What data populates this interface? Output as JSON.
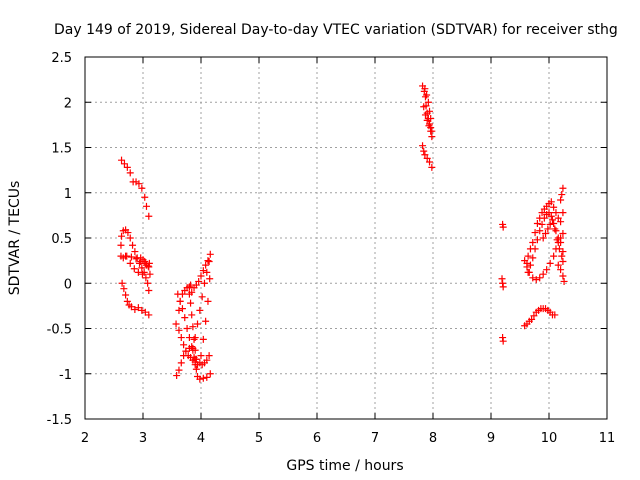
{
  "chart_data": {
    "type": "scatter",
    "title": "Day 149 of 2019, Sidereal Day-to-day VTEC variation (SDTVAR) for receiver sthg",
    "xlabel": "GPS time / hours",
    "ylabel": "SDTVAR / TECUs",
    "xlim": [
      2,
      11
    ],
    "ylim": [
      -1.5,
      2.5
    ],
    "xticks": [
      "2",
      "3",
      "4",
      "5",
      "6",
      "7",
      "8",
      "9",
      "10",
      "11"
    ],
    "yticks": [
      "-1.5",
      "-1",
      "-0.5",
      "0",
      "0.5",
      "1",
      "1.5",
      "2",
      "2.5"
    ],
    "grid": true,
    "marker": "+",
    "marker_color": "#ff0000",
    "series": [
      {
        "name": "SDTVAR",
        "points": [
          [
            2.63,
            1.36
          ],
          [
            2.68,
            1.32
          ],
          [
            2.73,
            1.28
          ],
          [
            2.78,
            1.22
          ],
          [
            2.83,
            1.12
          ],
          [
            2.88,
            1.12
          ],
          [
            2.93,
            1.1
          ],
          [
            2.98,
            1.05
          ],
          [
            3.03,
            0.95
          ],
          [
            3.06,
            0.85
          ],
          [
            3.1,
            0.74
          ],
          [
            2.62,
            0.42
          ],
          [
            2.63,
            0.52
          ],
          [
            2.66,
            0.58
          ],
          [
            2.7,
            0.59
          ],
          [
            2.74,
            0.56
          ],
          [
            2.78,
            0.5
          ],
          [
            2.82,
            0.42
          ],
          [
            2.86,
            0.35
          ],
          [
            2.9,
            0.28
          ],
          [
            2.94,
            0.22
          ],
          [
            2.98,
            0.17
          ],
          [
            3.02,
            0.12
          ],
          [
            3.05,
            0.06
          ],
          [
            3.08,
            0.0
          ],
          [
            3.1,
            -0.08
          ],
          [
            2.62,
            0.3
          ],
          [
            2.66,
            0.28
          ],
          [
            2.72,
            0.3
          ],
          [
            2.8,
            0.29
          ],
          [
            2.88,
            0.27
          ],
          [
            2.96,
            0.24
          ],
          [
            3.04,
            0.22
          ],
          [
            3.1,
            0.18
          ],
          [
            3.12,
            0.1
          ],
          [
            2.7,
            0.3
          ],
          [
            2.78,
            0.22
          ],
          [
            2.85,
            0.16
          ],
          [
            2.92,
            0.12
          ],
          [
            2.99,
            0.1
          ],
          [
            2.64,
            0.0
          ],
          [
            2.67,
            -0.06
          ],
          [
            2.7,
            -0.13
          ],
          [
            2.73,
            -0.2
          ],
          [
            2.76,
            -0.24
          ],
          [
            2.8,
            -0.26
          ],
          [
            2.86,
            -0.29
          ],
          [
            2.92,
            -0.27
          ],
          [
            2.98,
            -0.3
          ],
          [
            3.04,
            -0.32
          ],
          [
            3.1,
            -0.35
          ],
          [
            2.96,
            0.28
          ],
          [
            3.0,
            0.26
          ],
          [
            3.03,
            0.24
          ],
          [
            3.06,
            0.2
          ],
          [
            3.09,
            0.19
          ],
          [
            3.11,
            0.22
          ],
          [
            3.62,
            -0.3
          ],
          [
            3.64,
            -0.2
          ],
          [
            3.68,
            -0.12
          ],
          [
            3.72,
            -0.08
          ],
          [
            3.76,
            -0.05
          ],
          [
            3.8,
            -0.04
          ],
          [
            3.82,
            -0.02
          ],
          [
            3.57,
            -0.45
          ],
          [
            3.62,
            -0.52
          ],
          [
            3.66,
            -0.6
          ],
          [
            3.7,
            -0.68
          ],
          [
            3.74,
            -0.75
          ],
          [
            3.78,
            -0.8
          ],
          [
            3.82,
            -0.82
          ],
          [
            3.86,
            -0.85
          ],
          [
            3.9,
            -0.87
          ],
          [
            3.94,
            -0.9
          ],
          [
            3.98,
            -0.88
          ],
          [
            4.02,
            -0.9
          ],
          [
            4.06,
            -0.88
          ],
          [
            4.1,
            -0.85
          ],
          [
            4.14,
            -0.8
          ],
          [
            3.58,
            -1.02
          ],
          [
            3.62,
            -0.96
          ],
          [
            3.66,
            -0.88
          ],
          [
            3.7,
            -0.8
          ],
          [
            3.74,
            -0.75
          ],
          [
            3.8,
            -0.72
          ],
          [
            3.86,
            -0.74
          ],
          [
            3.9,
            -0.84
          ],
          [
            3.92,
            -0.95
          ],
          [
            3.94,
            -1.03
          ],
          [
            3.98,
            -1.06
          ],
          [
            4.04,
            -1.05
          ],
          [
            4.1,
            -1.04
          ],
          [
            4.16,
            -1.0
          ],
          [
            3.6,
            -0.12
          ],
          [
            3.64,
            -0.2
          ],
          [
            3.68,
            -0.28
          ],
          [
            3.72,
            -0.38
          ],
          [
            3.76,
            -0.5
          ],
          [
            3.8,
            -0.6
          ],
          [
            3.84,
            -0.7
          ],
          [
            3.88,
            -0.82
          ],
          [
            3.9,
            -0.9
          ],
          [
            3.8,
            -0.12
          ],
          [
            3.82,
            -0.22
          ],
          [
            3.84,
            -0.35
          ],
          [
            3.86,
            -0.48
          ],
          [
            3.88,
            -0.62
          ],
          [
            3.9,
            -0.74
          ],
          [
            3.92,
            -0.84
          ],
          [
            3.86,
            -0.72
          ],
          [
            3.9,
            -0.6
          ],
          [
            3.94,
            -0.45
          ],
          [
            3.98,
            -0.3
          ],
          [
            4.02,
            -0.15
          ],
          [
            4.06,
            0.0
          ],
          [
            4.1,
            0.12
          ],
          [
            4.14,
            0.24
          ],
          [
            4.16,
            0.32
          ],
          [
            3.84,
            -0.1
          ],
          [
            3.88,
            -0.05
          ],
          [
            3.92,
            -0.02
          ],
          [
            3.96,
            0.02
          ],
          [
            4.0,
            0.08
          ],
          [
            4.04,
            0.14
          ],
          [
            4.08,
            0.2
          ],
          [
            4.12,
            0.25
          ],
          [
            4.0,
            -0.8
          ],
          [
            4.04,
            -0.62
          ],
          [
            4.08,
            -0.42
          ],
          [
            4.12,
            -0.2
          ],
          [
            4.15,
            0.05
          ],
          [
            7.82,
            2.18
          ],
          [
            7.85,
            2.12
          ],
          [
            7.87,
            2.06
          ],
          [
            7.88,
            1.96
          ],
          [
            7.9,
            1.88
          ],
          [
            7.92,
            1.82
          ],
          [
            7.94,
            1.76
          ],
          [
            7.96,
            1.72
          ],
          [
            7.98,
            1.68
          ],
          [
            7.86,
            2.15
          ],
          [
            7.89,
            2.08
          ],
          [
            7.92,
            2.0
          ],
          [
            7.94,
            1.9
          ],
          [
            7.96,
            1.82
          ],
          [
            7.84,
            1.95
          ],
          [
            7.87,
            1.86
          ],
          [
            7.9,
            1.8
          ],
          [
            7.93,
            1.74
          ],
          [
            7.96,
            1.68
          ],
          [
            7.98,
            1.62
          ],
          [
            7.82,
            1.52
          ],
          [
            7.84,
            1.46
          ],
          [
            7.86,
            1.42
          ],
          [
            7.9,
            1.38
          ],
          [
            7.94,
            1.34
          ],
          [
            7.98,
            1.28
          ],
          [
            9.2,
            0.65
          ],
          [
            9.21,
            0.62
          ],
          [
            9.19,
            0.05
          ],
          [
            9.2,
            0.0
          ],
          [
            9.21,
            -0.04
          ],
          [
            9.2,
            -0.6
          ],
          [
            9.21,
            -0.64
          ],
          [
            9.58,
            -0.47
          ],
          [
            9.62,
            -0.45
          ],
          [
            9.66,
            -0.42
          ],
          [
            9.7,
            -0.4
          ],
          [
            9.74,
            -0.36
          ],
          [
            9.78,
            -0.32
          ],
          [
            9.82,
            -0.3
          ],
          [
            9.86,
            -0.28
          ],
          [
            9.9,
            -0.28
          ],
          [
            9.94,
            -0.28
          ],
          [
            9.98,
            -0.3
          ],
          [
            10.02,
            -0.32
          ],
          [
            10.06,
            -0.35
          ],
          [
            10.1,
            -0.35
          ],
          [
            9.62,
            0.22
          ],
          [
            9.64,
            0.3
          ],
          [
            9.68,
            0.38
          ],
          [
            9.72,
            0.45
          ],
          [
            9.76,
            0.56
          ],
          [
            9.8,
            0.66
          ],
          [
            9.84,
            0.72
          ],
          [
            9.88,
            0.78
          ],
          [
            9.92,
            0.82
          ],
          [
            9.96,
            0.85
          ],
          [
            10.0,
            0.88
          ],
          [
            10.04,
            0.9
          ],
          [
            10.08,
            0.84
          ],
          [
            10.12,
            0.78
          ],
          [
            10.16,
            0.72
          ],
          [
            10.2,
            0.68
          ],
          [
            10.24,
            0.78
          ],
          [
            9.58,
            0.25
          ],
          [
            9.62,
            0.18
          ],
          [
            9.66,
            0.12
          ],
          [
            9.72,
            0.06
          ],
          [
            9.78,
            0.04
          ],
          [
            9.84,
            0.06
          ],
          [
            9.9,
            0.1
          ],
          [
            9.96,
            0.15
          ],
          [
            10.02,
            0.22
          ],
          [
            10.08,
            0.3
          ],
          [
            10.12,
            0.38
          ],
          [
            10.16,
            0.45
          ],
          [
            10.2,
            0.5
          ],
          [
            10.24,
            0.55
          ],
          [
            9.64,
            0.12
          ],
          [
            9.68,
            0.2
          ],
          [
            9.72,
            0.28
          ],
          [
            9.76,
            0.38
          ],
          [
            9.8,
            0.48
          ],
          [
            9.84,
            0.58
          ],
          [
            9.88,
            0.65
          ],
          [
            9.92,
            0.72
          ],
          [
            9.96,
            0.76
          ],
          [
            10.0,
            0.78
          ],
          [
            10.04,
            0.74
          ],
          [
            10.08,
            0.66
          ],
          [
            10.12,
            0.58
          ],
          [
            10.16,
            0.5
          ],
          [
            10.2,
            0.45
          ],
          [
            10.24,
            0.35
          ],
          [
            9.9,
            0.5
          ],
          [
            9.94,
            0.55
          ],
          [
            9.98,
            0.6
          ],
          [
            10.02,
            0.65
          ],
          [
            10.06,
            0.7
          ],
          [
            10.1,
            0.6
          ],
          [
            10.14,
            0.48
          ],
          [
            10.18,
            0.38
          ],
          [
            10.22,
            0.3
          ],
          [
            10.24,
            0.24
          ],
          [
            10.2,
            0.92
          ],
          [
            10.22,
            0.98
          ],
          [
            10.24,
            1.05
          ],
          [
            10.16,
            0.2
          ],
          [
            10.2,
            0.15
          ],
          [
            10.24,
            0.08
          ],
          [
            10.26,
            0.02
          ]
        ]
      }
    ]
  }
}
